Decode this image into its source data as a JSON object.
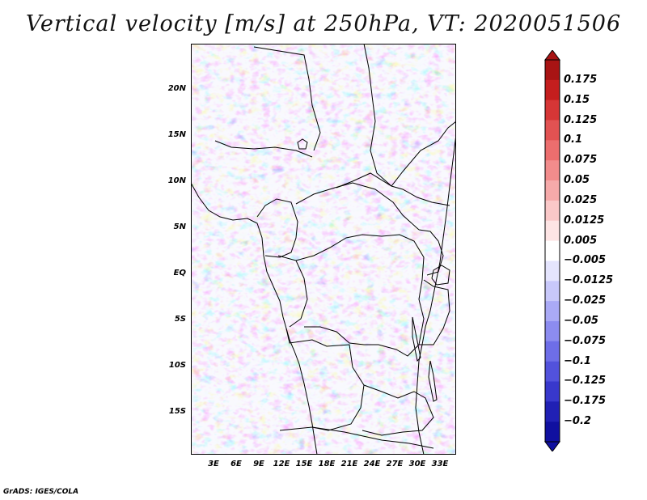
{
  "title": "Vertical velocity [m/s] at 250hPa, VT: 2020051506",
  "credit": "GrADS: IGES/COLA",
  "map": {
    "lat_labels": [
      "20N",
      "15N",
      "10N",
      "5N",
      "EQ",
      "5S",
      "10S",
      "15S"
    ],
    "lon_labels": [
      "3E",
      "6E",
      "9E",
      "12E",
      "15E",
      "18E",
      "21E",
      "24E",
      "27E",
      "30E",
      "33E"
    ],
    "lat_range_deg": [
      -20,
      25
    ],
    "lon_range_deg": [
      0,
      35
    ]
  },
  "colorbar": {
    "labels": [
      "0.175",
      "0.15",
      "0.125",
      "0.1",
      "0.075",
      "0.05",
      "0.025",
      "0.0125",
      "0.005",
      "−0.005",
      "−0.0125",
      "−0.025",
      "−0.05",
      "−0.075",
      "−0.1",
      "−0.125",
      "−0.175",
      "−0.2"
    ],
    "colors": [
      "#a81414",
      "#c41e1e",
      "#d63636",
      "#e25252",
      "#ec6e6e",
      "#f28c8c",
      "#f6aaaa",
      "#fac8c8",
      "#fde4e4",
      "#ffffff",
      "#e4e4fd",
      "#c8c8fa",
      "#aaaaf6",
      "#8c8cf0",
      "#6e6ee8",
      "#5252dc",
      "#3838cc",
      "#2020b4",
      "#1010a0"
    ]
  }
}
